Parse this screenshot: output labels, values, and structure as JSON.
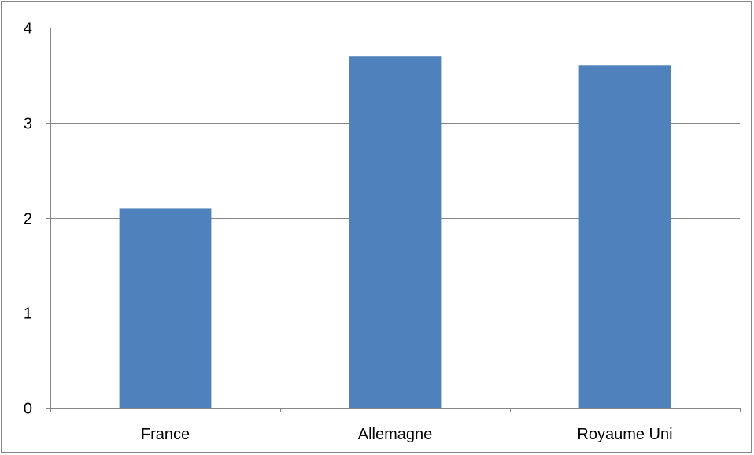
{
  "chart_data": {
    "type": "bar",
    "title": "",
    "xlabel": "",
    "ylabel": "",
    "categories": [
      "France",
      "Allemagne",
      "Royaume Uni"
    ],
    "values": [
      2.1,
      3.7,
      3.6
    ],
    "ylim": [
      0,
      4
    ],
    "yticks": [
      0,
      1,
      2,
      3,
      4
    ],
    "grid": true,
    "legend": "none",
    "colors": {
      "bar": "#4F81BD",
      "gridline": "#868686",
      "axis": "#868686",
      "frame": "#868686"
    }
  }
}
